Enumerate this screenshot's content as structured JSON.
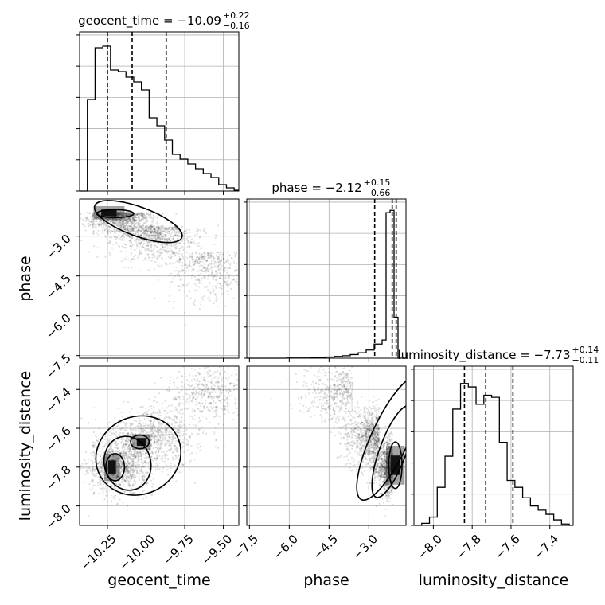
{
  "chart_data": {
    "type": "corner",
    "parameters": [
      "geocent_time",
      "phase",
      "luminosity_distance"
    ],
    "grid": true,
    "titles": [
      {
        "name": "geocent_time",
        "median": "−10.09",
        "plus": "+0.22",
        "minus": "−0.16"
      },
      {
        "name": "phase",
        "median": "−2.12",
        "plus": "+0.15",
        "minus": "−0.66"
      },
      {
        "name": "luminosity_distance",
        "median": "−7.73",
        "plus": "+0.14",
        "minus": "−0.11"
      }
    ],
    "title_eq": " = ",
    "xlabels": [
      "geocent_time",
      "phase",
      "luminosity_distance"
    ],
    "ylabels": [
      "",
      "phase",
      "luminosity_distance"
    ],
    "axes": {
      "geocent_time": {
        "range": [
          -10.43,
          -9.4
        ],
        "ticks": [
          -10.25,
          -10.0,
          -9.75,
          -9.5
        ],
        "ticklabels": [
          "−10.25",
          "−10.00",
          "−9.75",
          "−9.50"
        ]
      },
      "phase": {
        "range": [
          -7.6,
          -1.6
        ],
        "ticks": [
          -7.5,
          -6.0,
          -4.5,
          -3.0
        ],
        "ticklabels": [
          "−7.5",
          "−6.0",
          "−4.5",
          "−3.0"
        ]
      },
      "luminosity_distance": {
        "range": [
          -8.1,
          -7.28
        ],
        "ticks": [
          -8.0,
          -7.8,
          -7.6,
          -7.4
        ],
        "ticklabels": [
          "−8.0",
          "−7.8",
          "−7.6",
          "−7.4"
        ]
      }
    },
    "histograms": [
      {
        "parameter": "geocent_time",
        "bin_edges": [
          -10.43,
          -10.38,
          -10.33,
          -10.28,
          -10.23,
          -10.18,
          -10.13,
          -10.08,
          -10.03,
          -9.98,
          -9.93,
          -9.88,
          -9.83,
          -9.78,
          -9.73,
          -9.68,
          -9.63,
          -9.58,
          -9.53,
          -9.48,
          -9.43,
          -9.4
        ],
        "counts": [
          0,
          115,
          180,
          182,
          152,
          150,
          143,
          137,
          127,
          92,
          82,
          64,
          46,
          40,
          34,
          28,
          22,
          17,
          8,
          4,
          1
        ],
        "ymax": 200,
        "quantiles": [
          -10.25,
          -10.09,
          -9.87
        ]
      },
      {
        "parameter": "phase",
        "bin_edges": [
          -7.6,
          -7.3,
          -7.0,
          -6.7,
          -6.4,
          -6.1,
          -5.8,
          -5.5,
          -5.2,
          -4.9,
          -4.6,
          -4.3,
          -4.0,
          -3.7,
          -3.4,
          -3.1,
          -2.8,
          -2.5,
          -2.35,
          -2.2,
          -2.05,
          -1.9,
          -1.75,
          -1.6
        ],
        "counts": [
          0,
          0,
          0,
          0,
          0,
          1,
          1,
          1,
          2,
          3,
          5,
          8,
          11,
          16,
          24,
          36,
          62,
          80,
          640,
          650,
          180,
          0,
          0
        ],
        "ymax": 700,
        "quantiles": [
          -2.78,
          -2.12,
          -1.97
        ]
      },
      {
        "parameter": "luminosity_distance",
        "bin_edges": [
          -8.1,
          -8.06,
          -8.02,
          -7.98,
          -7.94,
          -7.9,
          -7.86,
          -7.82,
          -7.78,
          -7.74,
          -7.7,
          -7.66,
          -7.62,
          -7.58,
          -7.54,
          -7.5,
          -7.46,
          -7.42,
          -7.38,
          -7.34,
          -7.3,
          -7.28
        ],
        "counts": [
          0,
          3,
          12,
          55,
          100,
          168,
          205,
          200,
          175,
          188,
          185,
          120,
          65,
          55,
          40,
          28,
          22,
          16,
          8,
          2,
          0
        ],
        "ymax": 230,
        "quantiles": [
          -7.84,
          -7.73,
          -7.59
        ]
      }
    ]
  }
}
